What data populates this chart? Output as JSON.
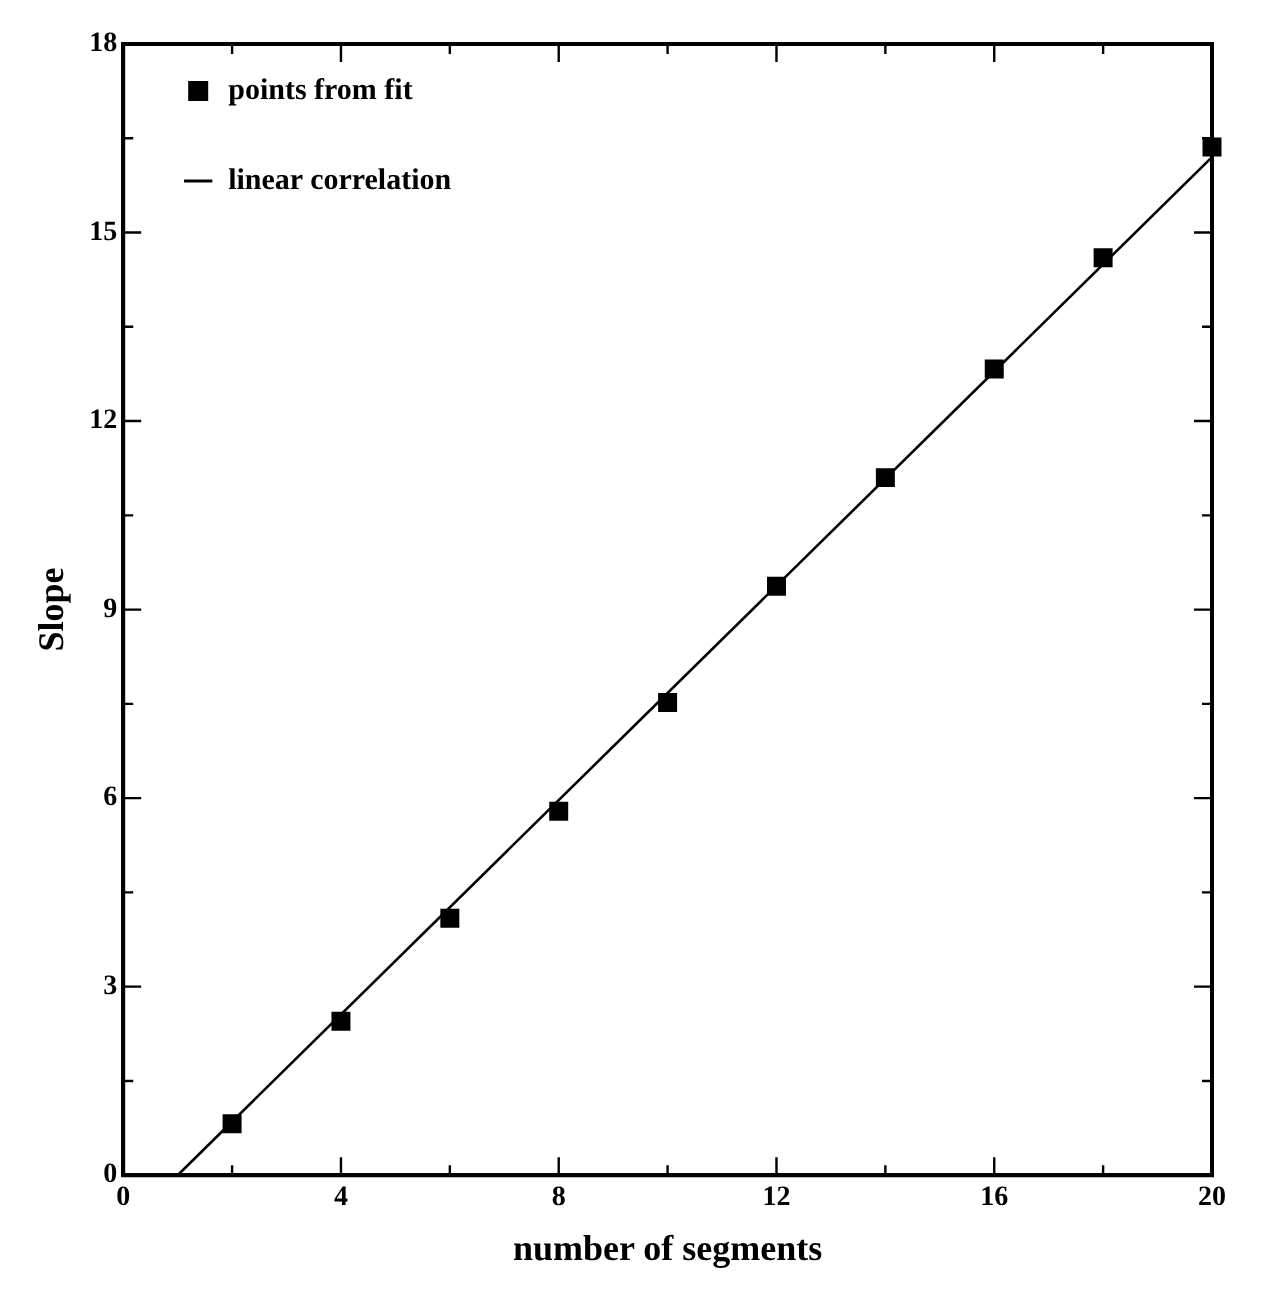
{
  "chart_data": {
    "type": "scatter",
    "xlabel": "number of segments",
    "ylabel": "Slope",
    "xlim": [
      0,
      20
    ],
    "ylim": [
      0,
      18
    ],
    "xticks": [
      0,
      {
        "value": 2,
        "label": null
      },
      4,
      {
        "value": 6,
        "label": null
      },
      8,
      {
        "value": 10,
        "label": null
      },
      12,
      {
        "value": 14,
        "label": null
      },
      16,
      {
        "value": 18,
        "label": null
      },
      20
    ],
    "yticks": [
      0,
      {
        "value": 1.5,
        "label": null
      },
      3,
      {
        "value": 4.5,
        "label": null
      },
      6,
      {
        "value": 7.5,
        "label": null
      },
      9,
      {
        "value": 10.5,
        "label": null
      },
      12,
      {
        "value": 13.5,
        "label": null
      },
      15,
      {
        "value": 16.5,
        "label": null
      },
      18
    ],
    "grid": false,
    "legend": "top left",
    "series": [
      {
        "name": "points from fit",
        "marker": "square",
        "color": "#000000",
        "x": [
          2,
          4,
          6,
          8,
          10,
          12,
          14,
          16,
          18,
          20
        ],
        "values": [
          0.82,
          2.45,
          4.09,
          5.79,
          7.52,
          9.37,
          11.1,
          12.83,
          14.6,
          16.36
        ]
      },
      {
        "name": "linear correlation",
        "type": "line",
        "marker": "none",
        "line_style": "solid",
        "color": "#000000",
        "x": [
          1,
          20
        ],
        "values": [
          0,
          16.2
        ]
      }
    ]
  }
}
